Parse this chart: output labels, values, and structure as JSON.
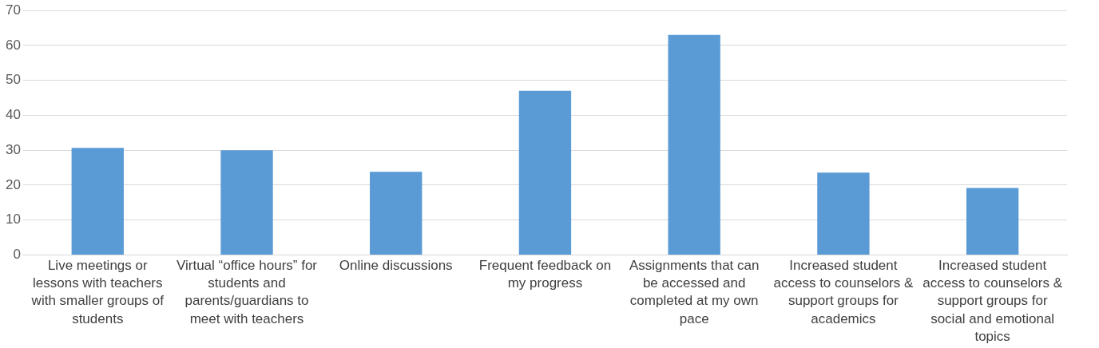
{
  "chart_data": {
    "type": "bar",
    "categories": [
      "Live meetings or lessons with teachers with smaller groups of students",
      "Virtual “office hours” for students and parents/guardians to meet with teachers",
      "Online discussions",
      "Frequent feedback on my progress",
      "Assignments that can be accessed and completed at my own pace",
      "Increased student access to counselors & support groups for academics",
      "Increased student access to counselors & support groups for social and emotional topics"
    ],
    "values": [
      30.7,
      30,
      23.8,
      47,
      63,
      23.6,
      19.2
    ],
    "color": "#5b9bd5",
    "ylim": [
      0,
      70
    ],
    "yticks": [
      0,
      10,
      20,
      30,
      40,
      50,
      60,
      70
    ],
    "grid": "y",
    "legend": false
  }
}
